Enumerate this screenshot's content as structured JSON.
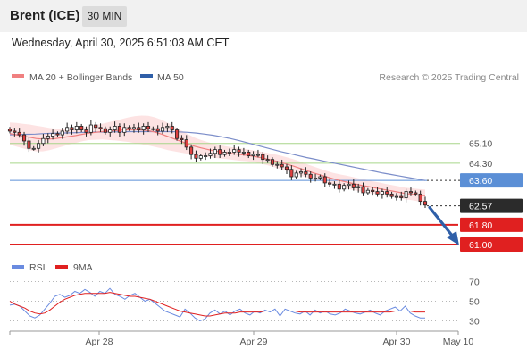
{
  "header": {
    "instrument": "Brent (ICE)",
    "timeframe": "30 MIN"
  },
  "timestamp": "Wednesday, April 30, 2025 6:51:03 AM CET",
  "legend": {
    "ma20_label": "MA 20 + Bollinger Bands",
    "ma50_label": "MA 50",
    "research": "Research © 2025 Trading Central",
    "rsi_label": "RSI",
    "rsi_ma_label": "9MA"
  },
  "colors": {
    "ma20": "#f08080",
    "bollinger": "#fde0e0",
    "ma50": "#7b8dc9",
    "level_green": "#a8d68a",
    "level_blue": "#5b8fd6",
    "level_red": "#e02020",
    "arrow": "#2f5fa8",
    "rsi": "#6a8be0",
    "rsi_ma": "#e02020",
    "candle_up": "#ffffff",
    "candle_down": "#e04040"
  },
  "chart_data": [
    {
      "type": "line",
      "title": "",
      "xlabel": "",
      "ylabel": "",
      "x_ticks": [
        "Apr 28",
        "Apr 29",
        "Apr 30",
        "May 10"
      ],
      "ylim": [
        60.6,
        67.3
      ],
      "price_levels": [
        {
          "value": 65.1,
          "label": "65.10",
          "style": "green"
        },
        {
          "value": 64.3,
          "label": "64.30",
          "style": "green"
        },
        {
          "value": 63.6,
          "label": "63.60",
          "style": "blue"
        },
        {
          "value": 62.57,
          "label": "62.57",
          "style": "current"
        },
        {
          "value": 61.8,
          "label": "61.80",
          "style": "red"
        },
        {
          "value": 61.0,
          "label": "61.00",
          "style": "red"
        }
      ],
      "forecast_arrow": {
        "from": 62.5,
        "to": 61.0
      },
      "series": [
        {
          "name": "MA 20 + Bollinger Bands",
          "close": [
            65.6,
            65.55,
            65.45,
            65.2,
            64.9,
            64.9,
            65.1,
            65.3,
            65.4,
            65.5,
            65.45,
            65.6,
            65.75,
            65.65,
            65.8,
            65.65,
            65.55,
            65.85,
            65.75,
            65.7,
            65.55,
            65.65,
            65.8,
            65.55,
            65.75,
            65.7,
            65.75,
            65.65,
            65.8,
            65.7,
            65.7,
            65.6,
            65.75,
            65.8,
            65.65,
            65.3,
            65.25,
            64.95,
            64.65,
            64.5,
            64.6,
            64.6,
            64.7,
            64.85,
            64.65,
            64.75,
            64.75,
            64.85,
            64.75,
            64.75,
            64.6,
            64.65,
            64.65,
            64.45,
            64.45,
            64.25,
            64.25,
            64.15,
            64.05,
            63.75,
            63.9,
            63.95,
            63.85,
            63.7,
            63.7,
            63.75,
            63.5,
            63.45,
            63.45,
            63.25,
            63.4,
            63.45,
            63.3,
            63.35,
            63.1,
            63.2,
            63.15,
            63.05,
            63.15,
            63.05,
            62.95,
            62.95,
            62.9,
            63.15,
            63.1,
            63.05,
            62.75,
            62.6
          ],
          "ma20": [
            65.5,
            65.45,
            65.4,
            65.35,
            65.3,
            65.28,
            65.28,
            65.3,
            65.34,
            65.38,
            65.42,
            65.47,
            65.52,
            65.55,
            65.58,
            65.6,
            65.62,
            65.64,
            65.66,
            65.66,
            65.65,
            65.62,
            65.56,
            65.48,
            65.38,
            65.28,
            65.18,
            65.08,
            64.99,
            64.92,
            64.86,
            64.8,
            64.76,
            64.72,
            64.68,
            64.65,
            64.62,
            64.58,
            64.53,
            64.47,
            64.41,
            64.34,
            64.26,
            64.18,
            64.09,
            64.0,
            63.91,
            63.83,
            63.75,
            63.67,
            63.6,
            63.54,
            63.48,
            63.42,
            63.37,
            63.32,
            63.27,
            63.22,
            63.17,
            63.12,
            63.07,
            63.04,
            63.0,
            62.98
          ],
          "ma20_x0_index": 0,
          "band_width": [
            0.45,
            0.48,
            0.5,
            0.52,
            0.52,
            0.5,
            0.45,
            0.4,
            0.36,
            0.32,
            0.3,
            0.28,
            0.28,
            0.3,
            0.32,
            0.36,
            0.4,
            0.45,
            0.5,
            0.55,
            0.58,
            0.6,
            0.6,
            0.58,
            0.55,
            0.5,
            0.45,
            0.4,
            0.35,
            0.32,
            0.3,
            0.28,
            0.27,
            0.26,
            0.25,
            0.25,
            0.24,
            0.24,
            0.24,
            0.25,
            0.26,
            0.27,
            0.28,
            0.28,
            0.28,
            0.27,
            0.26,
            0.25,
            0.24,
            0.24,
            0.25,
            0.26,
            0.26,
            0.26,
            0.26,
            0.25,
            0.25,
            0.24,
            0.24,
            0.24,
            0.24,
            0.24,
            0.25,
            0.25
          ]
        },
        {
          "name": "MA 50",
          "values": [
            65.45,
            65.46,
            65.47,
            65.48,
            65.5,
            65.51,
            65.52,
            65.53,
            65.54,
            65.55,
            65.56,
            65.56,
            65.57,
            65.57,
            65.58,
            65.58,
            65.58,
            65.58,
            65.58,
            65.58,
            65.57,
            65.55,
            65.52,
            65.48,
            65.43,
            65.37,
            65.3,
            65.22,
            65.13,
            65.04,
            64.95,
            64.86,
            64.77,
            64.69,
            64.61,
            64.53,
            64.46,
            64.39,
            64.32,
            64.25,
            64.18,
            64.11,
            64.04,
            63.97,
            63.9,
            63.84,
            63.78,
            63.72,
            63.66,
            63.6
          ]
        }
      ]
    },
    {
      "type": "line",
      "title": "",
      "ylim": [
        25,
        75
      ],
      "y_ticks": [
        70,
        50,
        30
      ],
      "series": [
        {
          "name": "RSI",
          "values": [
            46,
            47,
            45,
            40,
            35,
            33,
            36,
            42,
            48,
            55,
            57,
            54,
            56,
            60,
            58,
            62,
            59,
            55,
            60,
            58,
            63,
            57,
            55,
            52,
            56,
            58,
            54,
            50,
            52,
            48,
            44,
            40,
            38,
            36,
            34,
            42,
            38,
            33,
            30,
            32,
            38,
            41,
            37,
            40,
            36,
            40,
            42,
            38,
            36,
            40,
            38,
            41,
            39,
            42,
            35,
            42,
            40,
            38,
            37,
            40,
            36,
            41,
            38,
            40,
            37,
            36,
            38,
            42,
            40,
            38,
            37,
            39,
            41,
            38,
            36,
            40,
            42,
            44,
            40,
            45,
            38,
            35,
            33,
            33
          ]
        },
        {
          "name": "9MA",
          "values": [
            50,
            47,
            45,
            43,
            40,
            38,
            37,
            38,
            41,
            45,
            49,
            52,
            54,
            56,
            57,
            58,
            58,
            58,
            58,
            58,
            59,
            58,
            57,
            56,
            55,
            55,
            54,
            53,
            52,
            50,
            48,
            46,
            44,
            42,
            40,
            39,
            38,
            37,
            36,
            35,
            35,
            36,
            37,
            38,
            38,
            38,
            39,
            39,
            39,
            39,
            39,
            40,
            40,
            40,
            40,
            40,
            40,
            40,
            39,
            39,
            39,
            39,
            39,
            39,
            39,
            39,
            39,
            39,
            39,
            39,
            39,
            39,
            39,
            39,
            39,
            39,
            39,
            40,
            40,
            40,
            40,
            39,
            39,
            39
          ]
        }
      ]
    }
  ]
}
